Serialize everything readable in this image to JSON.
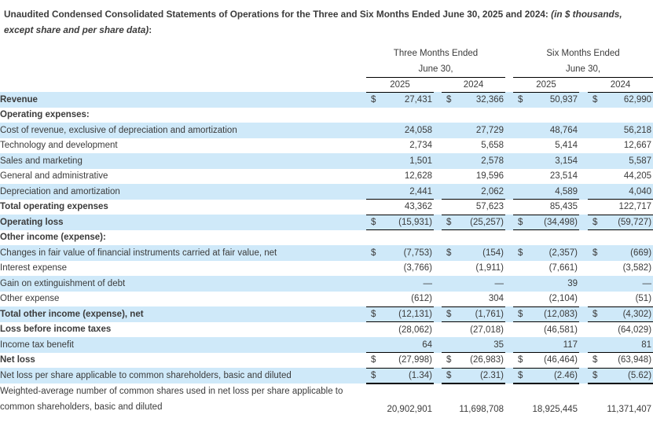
{
  "colors": {
    "band": "#cfe9f9",
    "rule": "#000000",
    "text": "#3b3b3b"
  },
  "title": {
    "main": "Unaudited Condensed Consolidated Statements of Operations for the Three and Six Months Ended June 30, 2025 and 2024: ",
    "italic": "(in $ thousands, except share and per share data)",
    "suffix": ":"
  },
  "header": {
    "groups": [
      {
        "period": "Three Months Ended",
        "date": "June 30,",
        "years": [
          "2025",
          "2024"
        ]
      },
      {
        "period": "Six Months Ended",
        "date": "June 30,",
        "years": [
          "2025",
          "2024"
        ]
      }
    ]
  },
  "rows": [
    {
      "label": "Revenue",
      "bold": true,
      "shaded": true,
      "dollar": true,
      "underline": "none",
      "values": [
        "27,431",
        "32,366",
        "50,937",
        "62,990"
      ]
    },
    {
      "label": "Operating expenses:",
      "bold": true,
      "shaded": false,
      "dollar": false,
      "underline": "none",
      "values": null
    },
    {
      "label": "Cost of revenue, exclusive of depreciation and amortization",
      "bold": false,
      "shaded": true,
      "dollar": false,
      "underline": "none",
      "values": [
        "24,058",
        "27,729",
        "48,764",
        "56,218"
      ]
    },
    {
      "label": "Technology and development",
      "bold": false,
      "shaded": false,
      "dollar": false,
      "underline": "none",
      "values": [
        "2,734",
        "5,658",
        "5,414",
        "12,667"
      ]
    },
    {
      "label": "Sales and marketing",
      "bold": false,
      "shaded": true,
      "dollar": false,
      "underline": "none",
      "values": [
        "1,501",
        "2,578",
        "3,154",
        "5,587"
      ]
    },
    {
      "label": "General and administrative",
      "bold": false,
      "shaded": false,
      "dollar": false,
      "underline": "none",
      "values": [
        "12,628",
        "19,596",
        "23,514",
        "44,205"
      ]
    },
    {
      "label": "Depreciation and amortization",
      "bold": false,
      "shaded": true,
      "dollar": false,
      "underline": "single",
      "values": [
        "2,441",
        "2,062",
        "4,589",
        "4,040"
      ]
    },
    {
      "label": "Total operating expenses",
      "bold": true,
      "shaded": false,
      "dollar": false,
      "underline": "single",
      "values": [
        "43,362",
        "57,623",
        "85,435",
        "122,717"
      ]
    },
    {
      "label": "Operating loss",
      "bold": true,
      "shaded": true,
      "dollar": true,
      "underline": "single",
      "values": [
        "(15,931)",
        "(25,257)",
        "(34,498)",
        "(59,727)"
      ]
    },
    {
      "label": "Other income (expense):",
      "bold": true,
      "shaded": false,
      "dollar": false,
      "underline": "none",
      "values": null
    },
    {
      "label": "Changes in fair value of financial instruments carried at fair value, net",
      "bold": false,
      "shaded": true,
      "dollar": true,
      "underline": "none",
      "values": [
        "(7,753)",
        "(154)",
        "(2,357)",
        "(669)"
      ]
    },
    {
      "label": "Interest expense",
      "bold": false,
      "shaded": false,
      "dollar": false,
      "underline": "none",
      "values": [
        "(3,766)",
        "(1,911)",
        "(7,661)",
        "(3,582)"
      ]
    },
    {
      "label": "Gain on extinguishment of debt",
      "bold": false,
      "shaded": true,
      "dollar": false,
      "underline": "none",
      "values": [
        "—",
        "—",
        "39",
        "—"
      ]
    },
    {
      "label": "Other expense",
      "bold": false,
      "shaded": false,
      "dollar": false,
      "underline": "single",
      "values": [
        "(612)",
        "304",
        "(2,104)",
        "(51)"
      ]
    },
    {
      "label": "Total other income (expense), net",
      "bold": true,
      "shaded": true,
      "dollar": true,
      "underline": "single",
      "values": [
        "(12,131)",
        "(1,761)",
        "(12,083)",
        "(4,302)"
      ]
    },
    {
      "label": "Loss before income taxes",
      "bold": true,
      "shaded": false,
      "dollar": false,
      "underline": "none",
      "values": [
        "(28,062)",
        "(27,018)",
        "(46,581)",
        "(64,029)"
      ]
    },
    {
      "label": "Income tax benefit",
      "bold": false,
      "shaded": true,
      "dollar": false,
      "underline": "single",
      "values": [
        "64",
        "35",
        "117",
        "81"
      ]
    },
    {
      "label": "Net loss",
      "bold": true,
      "shaded": false,
      "dollar": true,
      "underline": "single",
      "values": [
        "(27,998)",
        "(26,983)",
        "(46,464)",
        "(63,948)"
      ]
    },
    {
      "label": "Net loss per share applicable to common shareholders, basic and diluted",
      "bold": false,
      "shaded": true,
      "dollar": true,
      "underline": "thick",
      "values": [
        "(1.34)",
        "(2.31)",
        "(2.46)",
        "(5.62)"
      ]
    },
    {
      "label": "Weighted-average number of common shares used in net loss per share applicable to",
      "label2": "common shareholders, basic and diluted",
      "bold": false,
      "shaded": false,
      "dollar": false,
      "underline": "none",
      "values": [
        "20,902,901",
        "11,698,708",
        "18,925,445",
        "11,371,407"
      ]
    }
  ]
}
